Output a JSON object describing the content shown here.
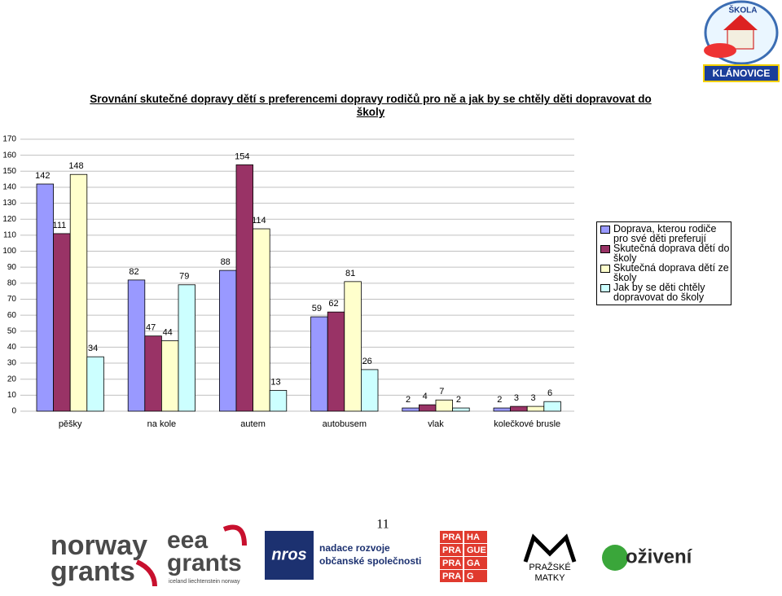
{
  "chart_data": {
    "type": "bar",
    "title": "Srovnání skutečné dopravy dětí s preferencemi dopravy rodičů pro ně a jak by se chtěly děti dopravovat do školy",
    "categories": [
      "pěšky",
      "na kole",
      "autem",
      "autobusem",
      "vlak",
      "kolečkové brusle"
    ],
    "series": [
      {
        "name": "Doprava, kterou rodiče pro své děti preferují",
        "color": "#9999ff",
        "values": [
          142,
          82,
          88,
          59,
          2,
          2
        ]
      },
      {
        "name": "Skutečná doprava dětí do školy",
        "color": "#993366",
        "values": [
          111,
          47,
          154,
          62,
          4,
          3
        ]
      },
      {
        "name": "Skutečná doprava dětí ze školy",
        "color": "#ffffcc",
        "values": [
          148,
          44,
          114,
          81,
          7,
          3
        ]
      },
      {
        "name": "Jak by se děti chtěly dopravovat do školy",
        "color": "#ccffff",
        "values": [
          34,
          79,
          13,
          26,
          2,
          6
        ]
      }
    ],
    "ylim": [
      0,
      170
    ],
    "yticks": [
      0,
      10,
      20,
      30,
      40,
      50,
      60,
      70,
      80,
      90,
      100,
      110,
      120,
      130,
      140,
      150,
      160,
      170
    ],
    "grid": true,
    "legend": "right"
  },
  "header": {
    "logo_top": "ŠKOLA",
    "logo_bottom": "KLÁNOVICE"
  },
  "page_number": "11",
  "footer": {
    "norway": [
      "norway",
      "grants"
    ],
    "eea": [
      "eea",
      "grants",
      "iceland liechtenstein norway"
    ],
    "nros": [
      "nros",
      "nadace rozvoje",
      "občanské společnosti"
    ],
    "praha": [
      [
        "PRA",
        "HA"
      ],
      [
        "PRA",
        "GUE"
      ],
      [
        "PRA",
        "GA"
      ],
      [
        "PRA",
        "G"
      ]
    ],
    "matky": [
      "PRAŽSKÉ",
      "MATKY"
    ],
    "ozivedni": "oživení"
  }
}
